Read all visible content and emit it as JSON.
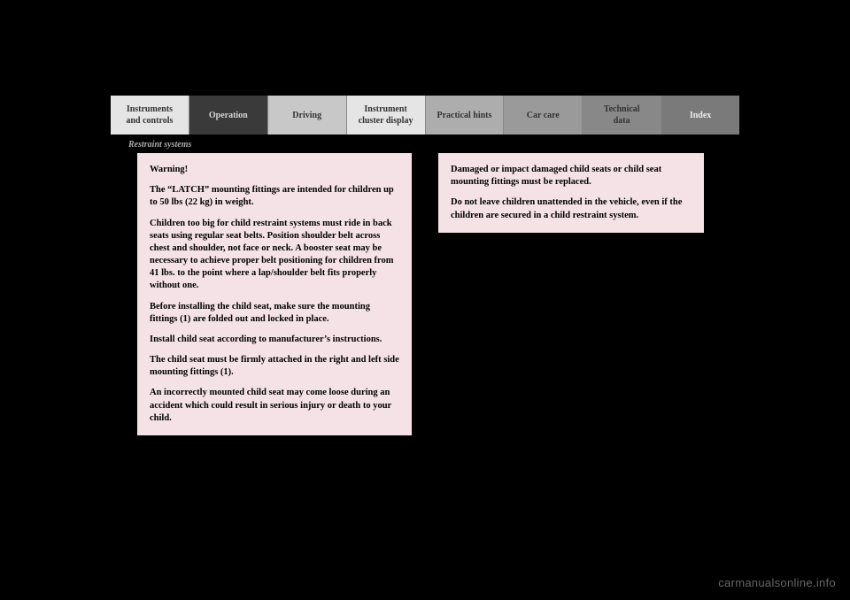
{
  "nav": {
    "tabs": [
      "Instruments\nand controls",
      "Operation",
      "Driving",
      "Instrument\ncluster display",
      "Practical hints",
      "Car care",
      "Technical\ndata",
      "Index"
    ]
  },
  "section_title": "Restraint systems",
  "warning_left": {
    "title": "Warning!",
    "p1": "The “LATCH” mounting fittings are intended for children up to 50 lbs (22 kg) in weight.",
    "p2": "Children too big for child restraint systems must ride in back seats using regular seat belts. Position shoulder belt across chest and shoulder, not face or neck. A booster seat may be necessary to achieve proper belt positioning for children from 41 lbs. to the point where a lap/shoulder belt fits properly without one.",
    "p3": "Before installing the child seat, make sure the mounting fittings (1) are folded out and locked in place.",
    "p4": "Install child seat according to manufacturer’s instructions.",
    "p5": "The child seat must be firmly attached in the right and left side mounting fittings (1).",
    "p6": "An incorrectly mounted child seat may come loose during an accident which could result in serious injury or death to your child."
  },
  "warning_right": {
    "p1": "Damaged or impact damaged child seats or child seat mounting fittings must be replaced.",
    "p2": "Do not leave children unattended in the vehicle, even if the children are secured in a child restraint system."
  },
  "watermark": "carmanualsonline.info",
  "colors": {
    "page_bg": "#000000",
    "warning_bg": "#f5e2e6",
    "tab_active_bg": "#3a3a3a",
    "tab_active_fg": "#d5d5d5"
  }
}
